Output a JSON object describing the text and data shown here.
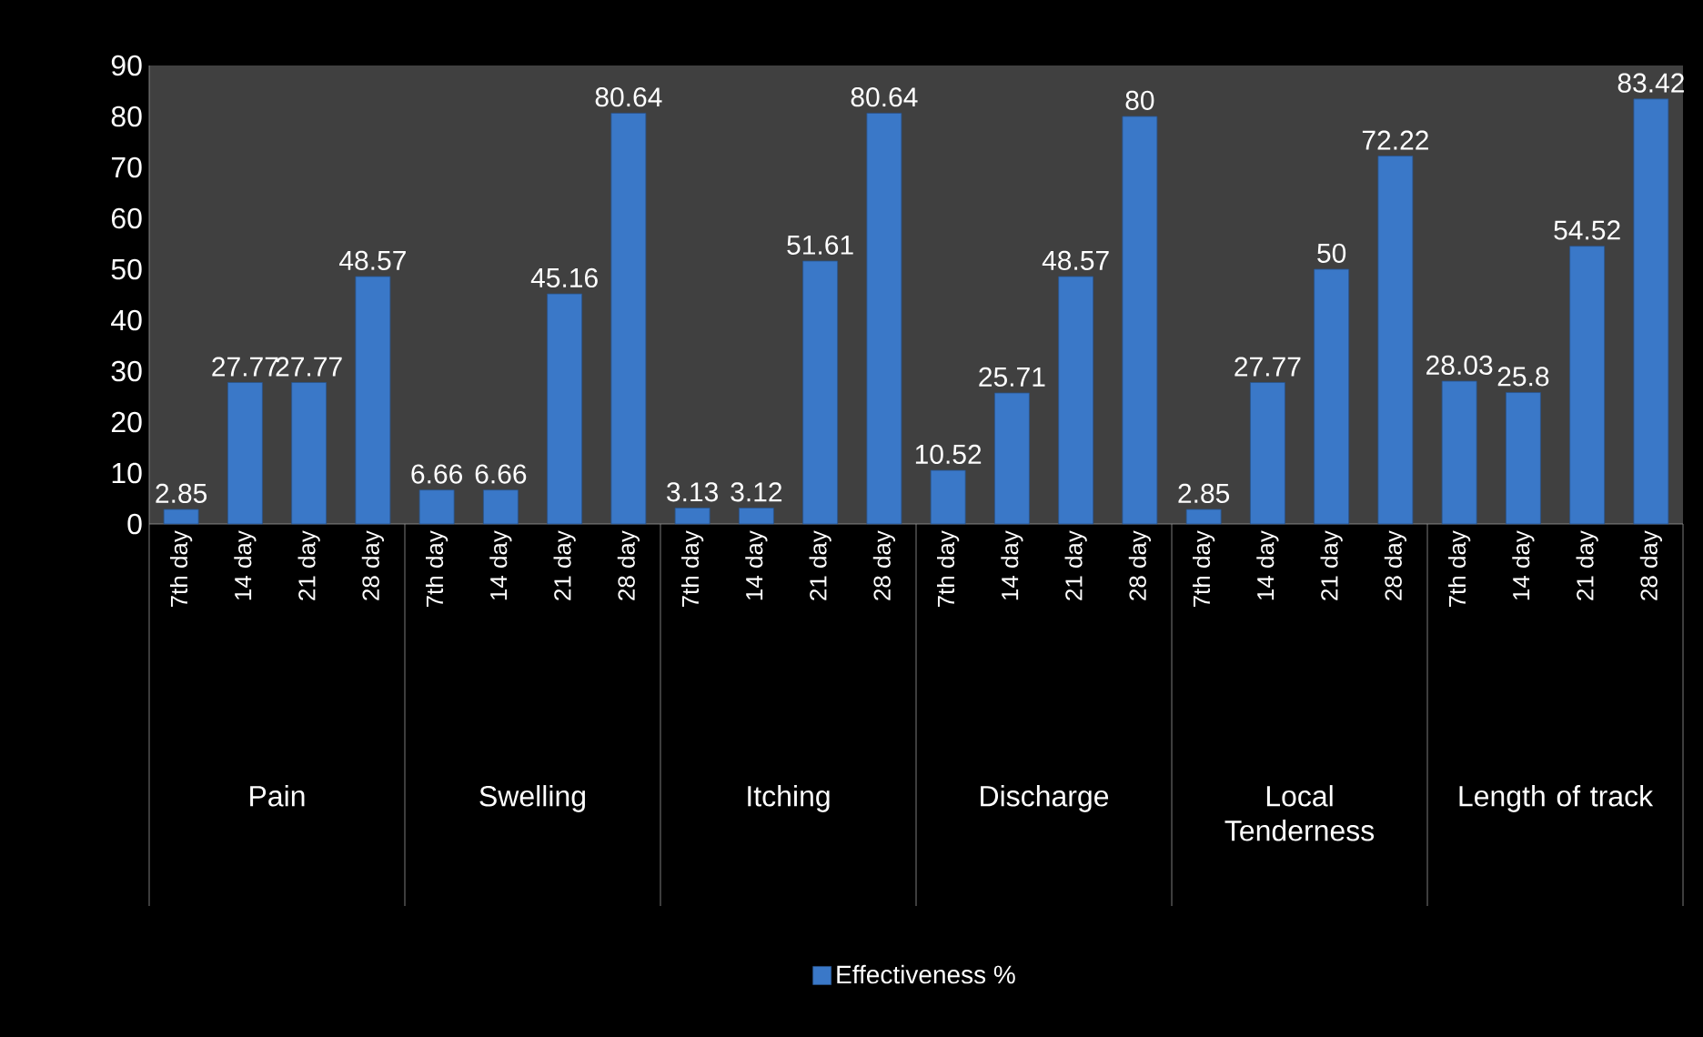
{
  "chart_data": {
    "type": "bar",
    "categories": [
      "7th day",
      "14 day",
      "21 day",
      "28 day",
      "7th day",
      "14 day",
      "21 day",
      "28 day",
      "7th day",
      "14 day",
      "21 day",
      "28 day",
      "7th day",
      "14 day",
      "21 day",
      "28 day",
      "7th day",
      "14 day",
      "21 day",
      "28 day",
      "7th day",
      "14 day",
      "21 day",
      "28 day"
    ],
    "series": [
      {
        "name": "Effectiveness %",
        "color": "#3a78c8",
        "values": [
          2.85,
          27.77,
          27.77,
          48.57,
          6.66,
          6.66,
          45.16,
          80.64,
          3.13,
          3.12,
          51.61,
          80.64,
          10.52,
          25.71,
          48.57,
          80,
          2.85,
          27.77,
          50,
          72.22,
          28.03,
          25.8,
          54.52,
          83.42
        ]
      }
    ],
    "ylim": [
      0,
      90
    ],
    "yticks": [
      0,
      10,
      20,
      30,
      40,
      50,
      60,
      70,
      80,
      90
    ],
    "data_labels": true,
    "legend": "bottom",
    "annotations": [
      "Pain",
      "Swelling",
      "Itching",
      "Discharge",
      "Local Tenderness",
      "Length of track"
    ]
  }
}
